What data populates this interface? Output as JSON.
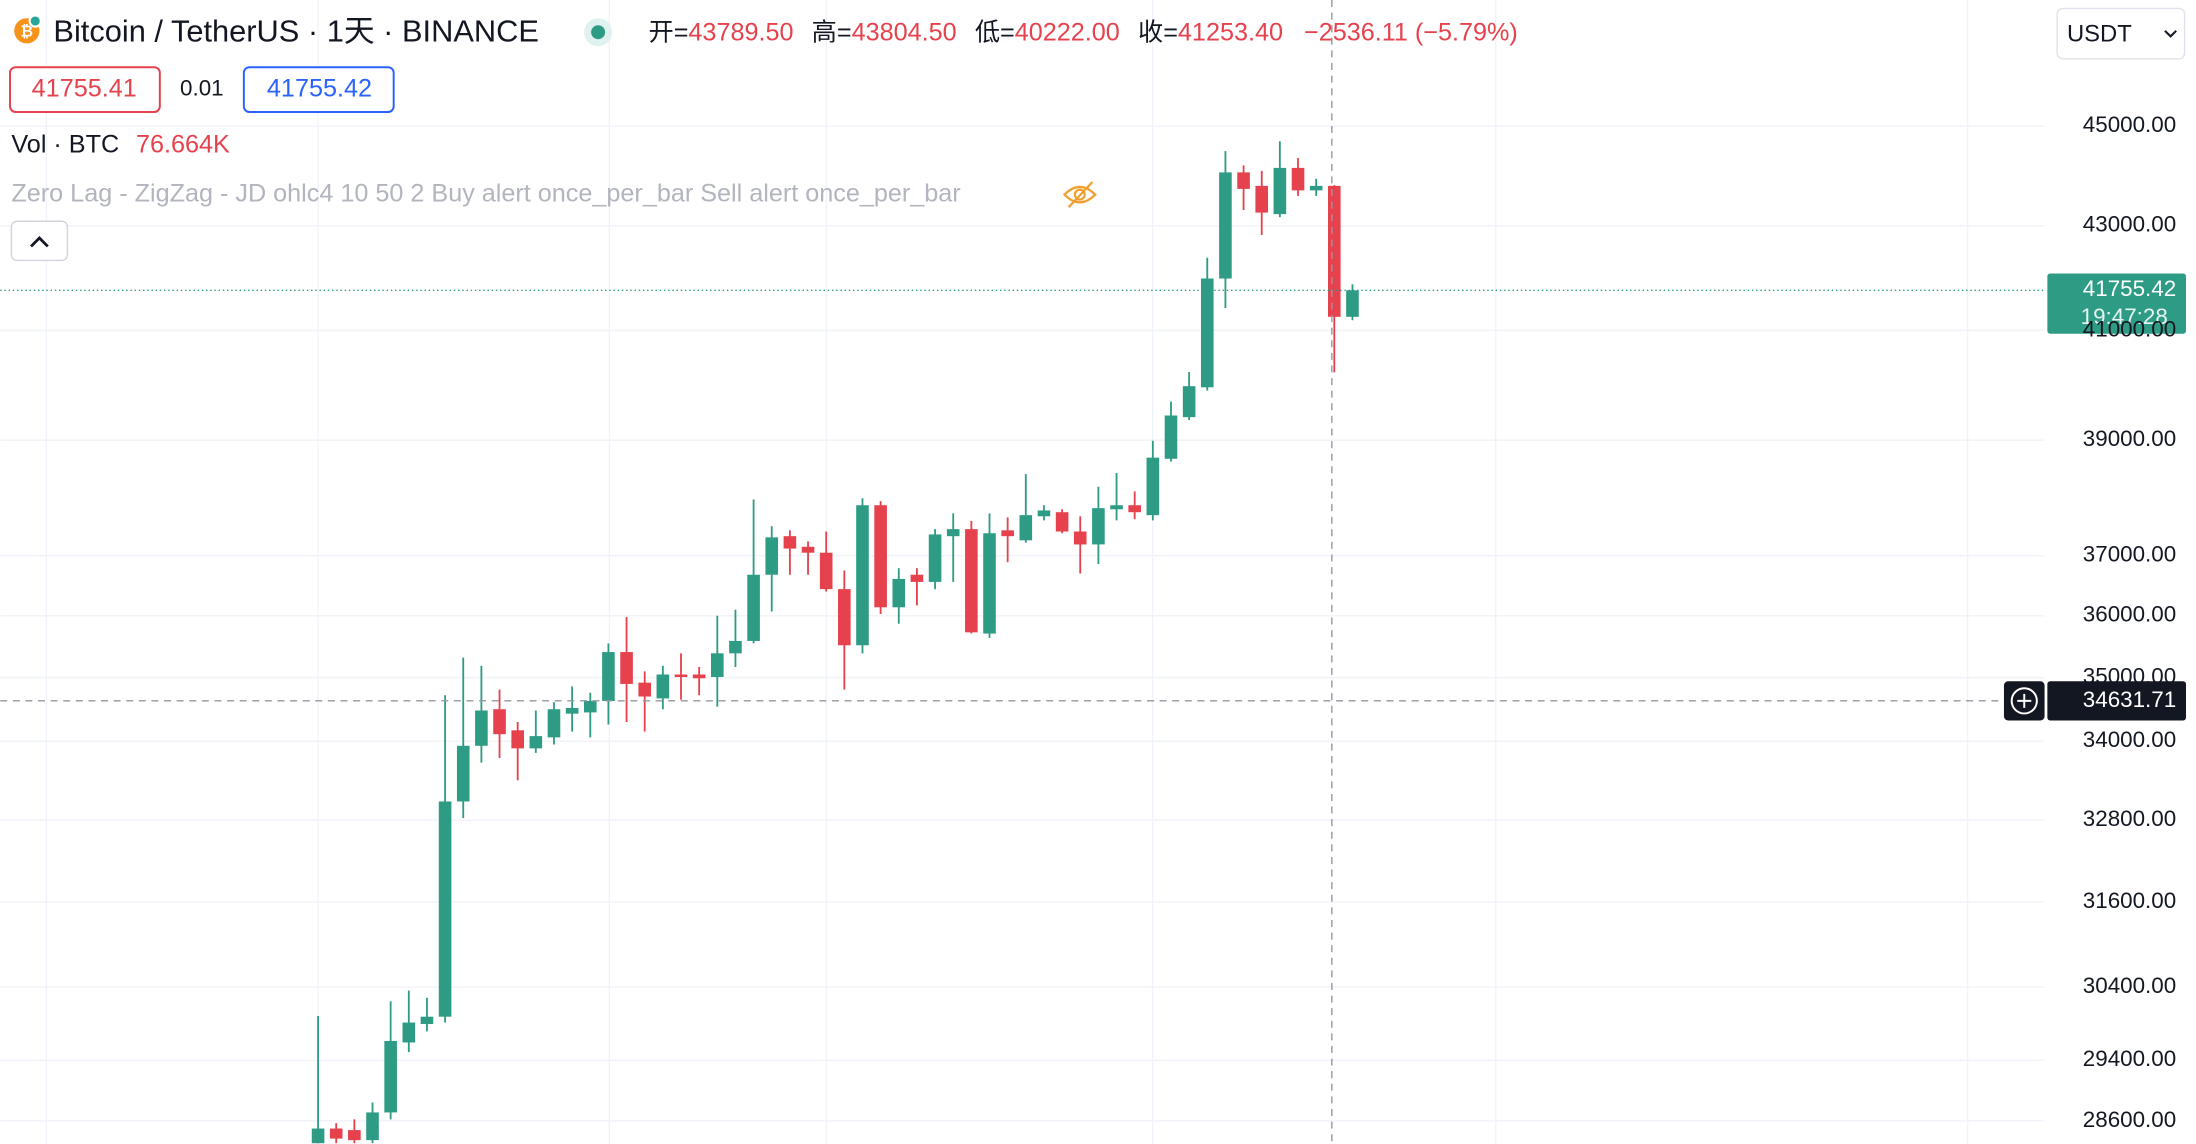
{
  "header": {
    "symbol": "Bitcoin / TetherUS · 1天 · BINANCE",
    "ohlc": [
      {
        "label": "开=",
        "value": "43789.50"
      },
      {
        "label": "高=",
        "value": "43804.50"
      },
      {
        "label": "低=",
        "value": "40222.00"
      },
      {
        "label": "收=",
        "value": "41253.40"
      }
    ],
    "change": "−2536.11 (−5.79%)",
    "bid": "41755.41",
    "spread": "0.01",
    "ask": "41755.42",
    "volume_label": "Vol · BTC",
    "volume_value": "76.664K",
    "indicator": "Zero Lag - ZigZag - JD ohlc4 10 50 2 Buy alert once_per_bar Sell alert once_per_bar",
    "currency": "USDT"
  },
  "chart_data": {
    "type": "candlestick",
    "log_scale": true,
    "grid": true,
    "up_color": "#2e9c84",
    "down_color": "#e5424d",
    "ylim": [
      28300,
      47660
    ],
    "yticks": [
      {
        "value": 45000,
        "label": "45000.00"
      },
      {
        "value": 43000,
        "label": "43000.00"
      },
      {
        "value": 41000,
        "label": "41000.00"
      },
      {
        "value": 39000,
        "label": "39000.00"
      },
      {
        "value": 37000,
        "label": "37000.00"
      },
      {
        "value": 36000,
        "label": "36000.00"
      },
      {
        "value": 35000,
        "label": "35000.00"
      },
      {
        "value": 34000,
        "label": "34000.00"
      },
      {
        "value": 32800,
        "label": "32800.00"
      },
      {
        "value": 31600,
        "label": "31600.00"
      },
      {
        "value": 30400,
        "label": "30400.00"
      },
      {
        "value": 29400,
        "label": "29400.00"
      },
      {
        "value": 28600,
        "label": "28600.00"
      }
    ],
    "open": [
      28310,
      28500,
      28480,
      28350,
      28710,
      29640,
      29890,
      29990,
      33080,
      33930,
      34500,
      34170,
      33890,
      34060,
      34430,
      34450,
      34630,
      35410,
      34920,
      34670,
      35050,
      35050,
      35010,
      35390,
      35590,
      36680,
      37330,
      37150,
      37050,
      36440,
      35520,
      37860,
      36140,
      36680,
      36560,
      37330,
      37450,
      35710,
      37430,
      37260,
      37670,
      37740,
      37410,
      37190,
      37790,
      37860,
      37690,
      38670,
      39410,
      39950,
      41980,
      44060,
      43790,
      43230,
      44150,
      43700,
      43789.5,
      41253.4
    ],
    "high": [
      30000,
      28570,
      28620,
      28840,
      30200,
      30350,
      30250,
      34720,
      35320,
      35190,
      34810,
      34300,
      34480,
      34610,
      34860,
      34760,
      35550,
      35980,
      35100,
      35190,
      35390,
      35170,
      36000,
      36100,
      37960,
      37500,
      37430,
      37240,
      37410,
      36750,
      37980,
      37930,
      36790,
      36790,
      37450,
      37720,
      37590,
      37720,
      37650,
      38400,
      37860,
      37790,
      37670,
      38180,
      38420,
      38100,
      38990,
      39690,
      40230,
      42380,
      44490,
      44200,
      44090,
      44690,
      44350,
      43930,
      43804.5,
      41870
    ],
    "low": [
      28310,
      28310,
      28310,
      28310,
      28620,
      29510,
      29790,
      29910,
      32830,
      33670,
      33740,
      33400,
      33820,
      33950,
      34150,
      34060,
      34260,
      34300,
      34150,
      34500,
      34650,
      34720,
      34540,
      35170,
      35550,
      36070,
      36680,
      36680,
      36400,
      34810,
      35390,
      36030,
      35870,
      36170,
      36440,
      36560,
      35710,
      35640,
      36890,
      37220,
      37600,
      37380,
      36700,
      36860,
      37600,
      37620,
      37600,
      38620,
      39360,
      39890,
      41420,
      43310,
      42820,
      43170,
      43590,
      43590,
      40222,
      41190
    ],
    "close": [
      28500,
      28370,
      28350,
      28710,
      29660,
      29910,
      29990,
      33080,
      33930,
      34480,
      34110,
      33890,
      34080,
      34500,
      34520,
      34630,
      35410,
      34900,
      34700,
      35050,
      35010,
      34990,
      35390,
      35590,
      36680,
      37310,
      37120,
      37050,
      36440,
      35520,
      37860,
      36140,
      36610,
      36560,
      37360,
      37450,
      35730,
      37380,
      37330,
      37690,
      37770,
      37410,
      37190,
      37810,
      37860,
      37740,
      38690,
      39440,
      39970,
      41980,
      44060,
      43730,
      43260,
      44150,
      43700,
      43790,
      41253.4,
      41755.42
    ],
    "current_timer": "19:47:28",
    "crosshair_price": 34631.71
  }
}
